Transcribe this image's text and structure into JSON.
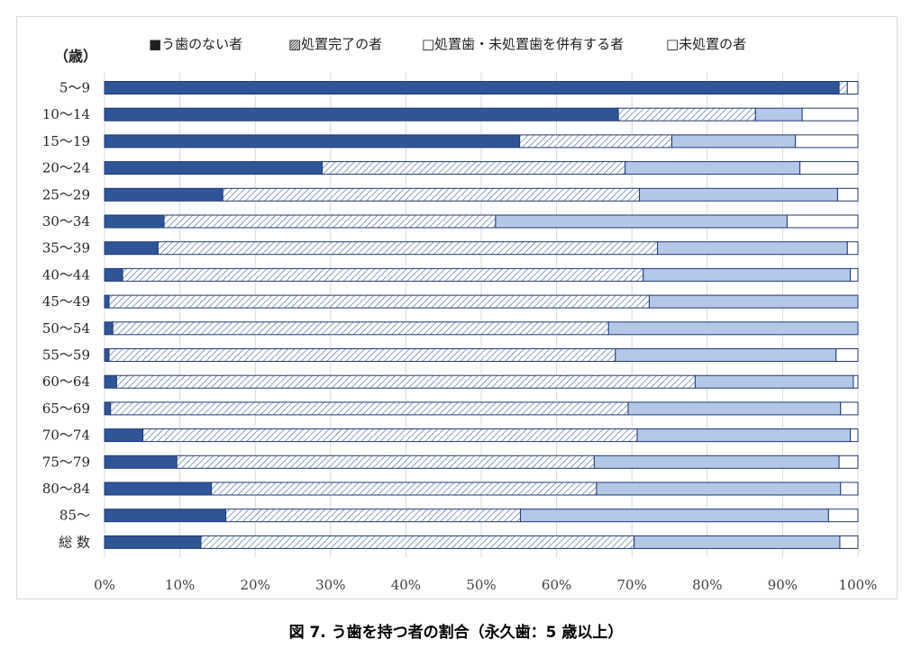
{
  "caption": "図 7.  う歯を持つ者の割合（永久歯：5 歳以上）",
  "chart_data": {
    "type": "bar",
    "orientation": "horizontal",
    "stacked": "percent",
    "y_unit_label": "（歳）",
    "categories": [
      "5〜9",
      "10〜14",
      "15〜19",
      "20〜24",
      "25〜29",
      "30〜34",
      "35〜39",
      "40〜44",
      "45〜49",
      "50〜54",
      "55〜59",
      "60〜64",
      "65〜69",
      "70〜74",
      "75〜79",
      "80〜84",
      "85〜",
      "総 数"
    ],
    "x_ticks": [
      "0%",
      "10%",
      "20%",
      "30%",
      "40%",
      "50%",
      "60%",
      "70%",
      "80%",
      "90%",
      "100%"
    ],
    "xlim": [
      0,
      100
    ],
    "grid": "vertical",
    "legend_position": "top",
    "series": [
      {
        "name": "■う歯のない者",
        "color": "#2f5597",
        "pattern": "solid",
        "values": [
          97.5,
          68.2,
          55.1,
          28.9,
          15.7,
          7.9,
          7.1,
          2.4,
          0.6,
          1.1,
          0.6,
          1.6,
          0.8,
          5.1,
          9.6,
          14.2,
          16.1,
          12.8
        ]
      },
      {
        "name": "▨処置完了の者",
        "color": "#2f5597",
        "pattern": "hatch",
        "values": [
          1.1,
          18.2,
          20.2,
          40.2,
          55.3,
          44.0,
          66.3,
          69.1,
          71.7,
          65.8,
          67.2,
          76.8,
          68.7,
          65.6,
          55.4,
          51.1,
          39.1,
          57.5
        ]
      },
      {
        "name": "□処置歯・未処置歯を併有する者",
        "color": "#b4c7e7",
        "pattern": "solid",
        "values": [
          0.0,
          6.2,
          16.4,
          23.2,
          26.3,
          38.7,
          25.2,
          27.5,
          27.7,
          33.1,
          29.3,
          21.0,
          28.2,
          28.3,
          32.5,
          32.4,
          40.9,
          27.3
        ]
      },
      {
        "name": "□未処置の者",
        "color": "#ffffff",
        "pattern": "solid",
        "values": [
          1.4,
          7.4,
          8.3,
          7.7,
          2.7,
          9.4,
          1.4,
          1.0,
          0.0,
          0.0,
          2.9,
          0.6,
          2.3,
          1.0,
          2.5,
          2.3,
          3.9,
          2.4
        ]
      }
    ]
  }
}
